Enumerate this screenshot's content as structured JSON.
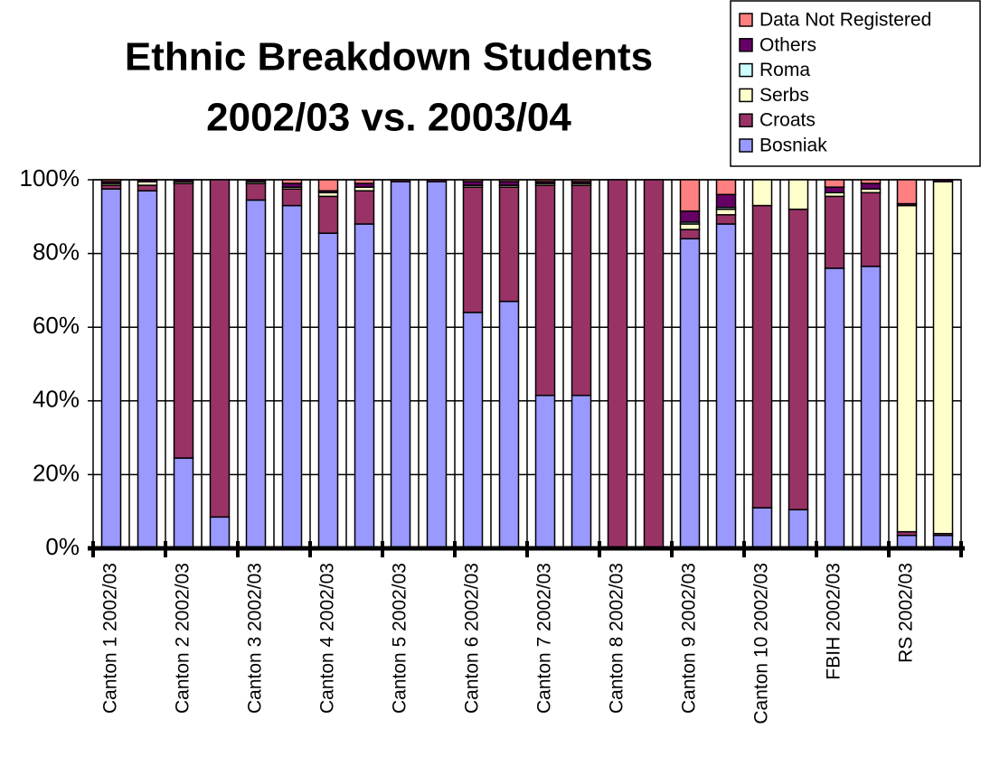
{
  "chart_data": {
    "type": "stacked_bar",
    "title": [
      "Ethnic Breakdown Students",
      "2002/03 vs. 2003/04"
    ],
    "categories": [
      "Canton 1 2002/03",
      null,
      "Canton 2 2002/03",
      null,
      "Canton 3 2002/03",
      null,
      "Canton 4 2002/03",
      null,
      "Canton 5 2002/03",
      null,
      "Canton 6 2002/03",
      null,
      "Canton 7 2002/03",
      null,
      "Canton 8 2002/03",
      null,
      "Canton 9 2002/03",
      null,
      "Canton 10 2002/03",
      null,
      "FBIH 2002/03",
      null,
      "RS 2002/03",
      null
    ],
    "series": [
      {
        "name": "Bosniak",
        "color": "#9999ff",
        "values": [
          97.5,
          97,
          24.5,
          8.5,
          94.5,
          93,
          85.5,
          88,
          99.5,
          99.5,
          64,
          67,
          41.5,
          41.5,
          0,
          0,
          84,
          88,
          11,
          10.5,
          76,
          76.5,
          3.5,
          3.5
        ]
      },
      {
        "name": "Croats",
        "color": "#993366",
        "values": [
          1,
          1.5,
          74.5,
          91.5,
          4.5,
          4.5,
          10,
          9,
          0.5,
          0.5,
          34,
          31,
          57,
          57,
          100,
          100,
          2.5,
          2.5,
          82,
          81.5,
          19.5,
          20,
          1,
          0.5
        ]
      },
      {
        "name": "Serbs",
        "color": "#ffffcc",
        "values": [
          0.5,
          1,
          0.5,
          0,
          0.5,
          0.5,
          1,
          1,
          0,
          0,
          0.5,
          0.5,
          0.5,
          0.5,
          0,
          0,
          1.5,
          1.5,
          7,
          8,
          1,
          1,
          88.5,
          95.5
        ]
      },
      {
        "name": "Roma",
        "color": "#ccffff",
        "values": [
          0,
          0,
          0,
          0,
          0,
          0,
          0,
          0,
          0,
          0,
          0,
          0,
          0,
          0,
          0,
          0,
          0.5,
          0.5,
          0,
          0,
          0,
          0,
          0,
          0
        ]
      },
      {
        "name": "Others",
        "color": "#660066",
        "values": [
          0.5,
          0.5,
          0.5,
          0,
          0.5,
          1,
          0.5,
          1,
          0,
          0,
          1,
          1,
          0.5,
          0.5,
          0,
          0,
          3,
          3.5,
          0,
          0,
          1.5,
          1.5,
          0.5,
          0.5
        ]
      },
      {
        "name": "Data Not Registered",
        "color": "#ff8080",
        "values": [
          0.5,
          0,
          0,
          0,
          0,
          1,
          3,
          1,
          0,
          0,
          0.5,
          0.5,
          0.5,
          0.5,
          0,
          0,
          8.5,
          4,
          0,
          0,
          2,
          1,
          6.5,
          0
        ]
      }
    ],
    "ylim": [
      0,
      100
    ],
    "yticks": [
      {
        "value": 0,
        "label": "0%"
      },
      {
        "value": 20,
        "label": "20%"
      },
      {
        "value": 40,
        "label": "40%"
      },
      {
        "value": 60,
        "label": "60%"
      },
      {
        "value": 80,
        "label": "80%"
      },
      {
        "value": 100,
        "label": "100%"
      }
    ],
    "grid": true,
    "legend": "top-right"
  }
}
